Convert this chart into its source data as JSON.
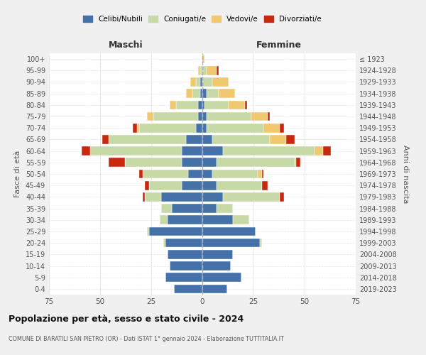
{
  "age_groups": [
    "0-4",
    "5-9",
    "10-14",
    "15-19",
    "20-24",
    "25-29",
    "30-34",
    "35-39",
    "40-44",
    "45-49",
    "50-54",
    "55-59",
    "60-64",
    "65-69",
    "70-74",
    "75-79",
    "80-84",
    "85-89",
    "90-94",
    "95-99",
    "100+"
  ],
  "birth_years": [
    "2019-2023",
    "2014-2018",
    "2009-2013",
    "2004-2008",
    "1999-2003",
    "1994-1998",
    "1989-1993",
    "1984-1988",
    "1979-1983",
    "1974-1978",
    "1969-1973",
    "1964-1968",
    "1959-1963",
    "1954-1958",
    "1949-1953",
    "1944-1948",
    "1939-1943",
    "1934-1938",
    "1929-1933",
    "1924-1928",
    "≤ 1923"
  ],
  "colors": {
    "celibi": "#4472a8",
    "coniugati": "#c8d9a8",
    "vedovi": "#f0c870",
    "divorziati": "#c82810"
  },
  "maschi": {
    "celibi": [
      14,
      18,
      16,
      17,
      18,
      26,
      17,
      15,
      20,
      10,
      7,
      10,
      10,
      8,
      3,
      2,
      2,
      1,
      1,
      0,
      0
    ],
    "coniugati": [
      0,
      0,
      0,
      0,
      1,
      1,
      4,
      5,
      8,
      16,
      22,
      28,
      45,
      38,
      28,
      22,
      11,
      4,
      2,
      1,
      0
    ],
    "vedovi": [
      0,
      0,
      0,
      0,
      0,
      0,
      0,
      0,
      0,
      0,
      0,
      0,
      0,
      0,
      1,
      3,
      3,
      3,
      3,
      1,
      0
    ],
    "divorziati": [
      0,
      0,
      0,
      0,
      0,
      0,
      0,
      0,
      1,
      2,
      2,
      8,
      4,
      3,
      2,
      0,
      0,
      0,
      0,
      0,
      0
    ]
  },
  "femmine": {
    "celibi": [
      12,
      19,
      14,
      15,
      28,
      26,
      15,
      7,
      10,
      7,
      5,
      7,
      10,
      5,
      2,
      2,
      1,
      2,
      0,
      0,
      0
    ],
    "coniugati": [
      0,
      0,
      0,
      0,
      1,
      0,
      8,
      8,
      28,
      22,
      22,
      38,
      45,
      28,
      28,
      22,
      12,
      6,
      5,
      2,
      0
    ],
    "vedovi": [
      0,
      0,
      0,
      0,
      0,
      0,
      0,
      0,
      0,
      0,
      2,
      1,
      4,
      8,
      8,
      8,
      8,
      8,
      8,
      5,
      1
    ],
    "divorziati": [
      0,
      0,
      0,
      0,
      0,
      0,
      0,
      0,
      2,
      3,
      1,
      2,
      4,
      4,
      2,
      1,
      1,
      0,
      0,
      1,
      0
    ]
  },
  "title": "Popolazione per età, sesso e stato civile - 2024",
  "subtitle": "COMUNE DI BARATILI SAN PIETRO (OR) - Dati ISTAT 1° gennaio 2024 - Elaborazione TUTTITALIA.IT",
  "xlabel_left": "Maschi",
  "xlabel_right": "Femmine",
  "ylabel_left": "Fasce di età",
  "ylabel_right": "Anni di nascita",
  "xlim": 75,
  "legend_labels": [
    "Celibi/Nubili",
    "Coniugati/e",
    "Vedovi/e",
    "Divorziati/e"
  ],
  "bg_color": "#f0f0f0",
  "plot_bg": "#ffffff",
  "grid_color": "#cccccc"
}
